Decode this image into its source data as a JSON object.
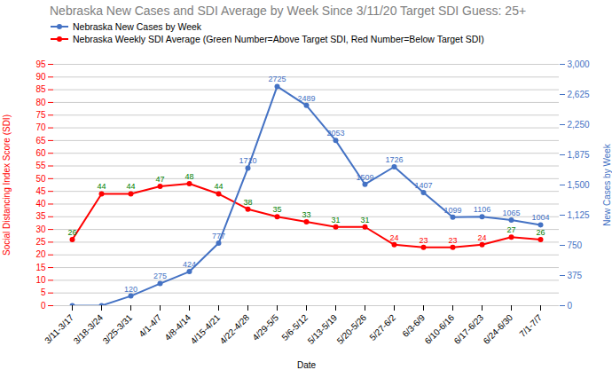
{
  "chart_data": {
    "type": "line",
    "title": "Nebraska New Cases and SDI Average by Week Since 3/11/20 Target SDI Guess: 25+",
    "xlabel": "Date",
    "ylabel": "Social Distancing Index Score (SDI)",
    "y2label": "New Cases by Week",
    "categories": [
      "3/11-3/17",
      "3/18-3/24",
      "3/25-3/31",
      "4/1-4/7",
      "4/8-4/14",
      "4/15-4/21",
      "4/22-4/28",
      "4/29-5/5",
      "5/6-5/12",
      "5/13-5/19",
      "5/20-5/26",
      "5/27-6/2",
      "6/3-6/9",
      "6/10-6/16",
      "6/17-6/23",
      "6/24-6/30",
      "7/1-7/7"
    ],
    "series": [
      {
        "name": "Nebraska New Cases by Week",
        "color": "#4472C4",
        "axis": "y2",
        "marker": "circle",
        "values": [
          1,
          1,
          120,
          275,
          424,
          777,
          1710,
          2725,
          2489,
          2053,
          1509,
          1726,
          1407,
          1099,
          1106,
          1065,
          1004
        ],
        "value_labels": [
          null,
          null,
          "120",
          "275",
          "424",
          "777",
          "1710",
          "2725",
          "2489",
          "2053",
          "1509",
          "1726",
          "1407",
          "1099",
          "1106",
          "1065",
          "1004"
        ]
      },
      {
        "name": "Nebraska Weekly SDI Average (Green Number=Above Target SDI, Red Number=Below Target SDI)",
        "color": "#FF0000",
        "marker": "circle",
        "values": [
          26,
          44,
          44,
          47,
          48,
          44,
          38,
          35,
          33,
          31,
          31,
          24,
          23,
          23,
          24,
          27,
          26
        ],
        "colors": [
          "green",
          "green",
          "green",
          "green",
          "green",
          "green",
          "green",
          "green",
          "green",
          "green",
          "green",
          "red",
          "red",
          "red",
          "red",
          "green",
          "green"
        ]
      }
    ],
    "ylim": [
      0,
      95
    ],
    "yticks": [
      0,
      5,
      10,
      15,
      20,
      25,
      30,
      35,
      40,
      45,
      50,
      55,
      60,
      65,
      70,
      75,
      80,
      85,
      90,
      95
    ],
    "y2lim": [
      0,
      3000
    ],
    "y2ticks": [
      0,
      375,
      750,
      1125,
      1500,
      1875,
      2250,
      2625,
      3000
    ],
    "grid": true,
    "legend": "top",
    "data_labels": true
  }
}
